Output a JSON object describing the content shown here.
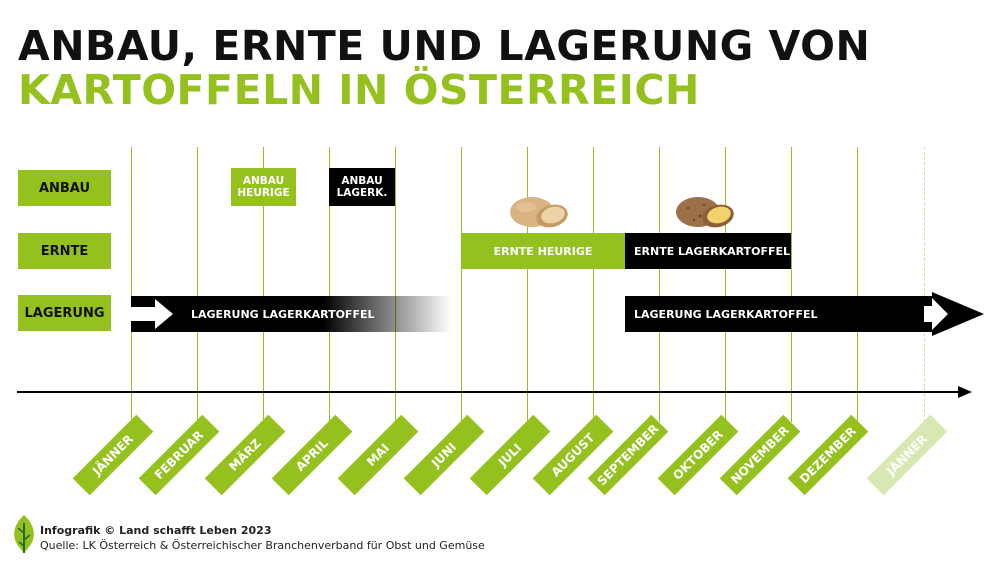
{
  "title": {
    "line1": "ANBAU, ERNTE UND LAGERUNG VON",
    "line2": "KARTOFFELN IN ÖSTERREICH"
  },
  "colors": {
    "green": "#95c11f",
    "black": "#000000",
    "pale_green": "#d8e8b2",
    "title_dark": "#111111"
  },
  "row_labels": {
    "anbau": "ANBAU",
    "ernte": "ERNTE",
    "lagerung": "LAGERUNG"
  },
  "anbau": {
    "heurige": [
      "ANBAU",
      "HEURIGE"
    ],
    "lagerk": [
      "ANBAU",
      "LAGERK."
    ]
  },
  "ernte": {
    "heurige": "ERNTE HEURIGE",
    "lagerkartoffel": "ERNTE LAGERKARTOFFEL"
  },
  "lagerung": {
    "early": "LAGERUNG LAGERKARTOFFEL",
    "late": "LAGERUNG LAGERKARTOFFEL"
  },
  "months": [
    "JÄNNER",
    "FEBRUAR",
    "MÄRZ",
    "APRIL",
    "MAI",
    "JUNI",
    "JULI",
    "AUGUST",
    "SEPTEMBER",
    "OKTOBER",
    "NOVEMBER",
    "DEZEMBER",
    "JÄNNER"
  ],
  "icons": [
    "potato-icon",
    "potato-icon",
    "leaf-logo-icon",
    "arrow-right-icon"
  ],
  "footer": {
    "credit": "Infografik © Land schafft Leben 2023",
    "source": "Quelle: LK Österreich & Österreichischer Branchenverband für Obst und Gemüse"
  }
}
